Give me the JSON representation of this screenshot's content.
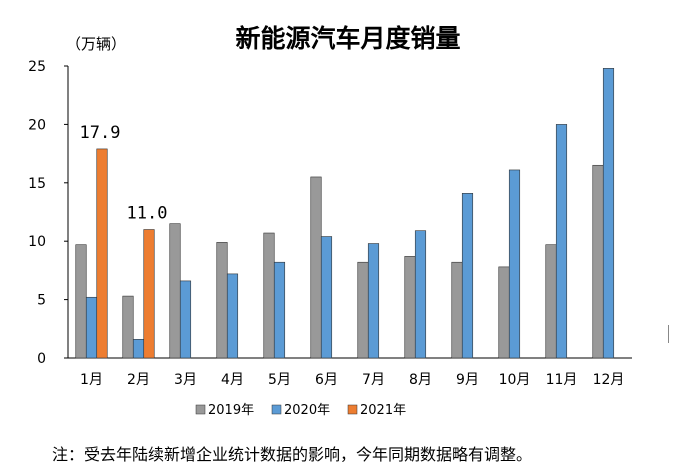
{
  "chart_data": {
    "type": "bar",
    "title": "新能源汽车月度销量",
    "ylabel": "（万辆）",
    "ylim": [
      0,
      25
    ],
    "yticks": [
      0,
      5,
      10,
      15,
      20,
      25
    ],
    "categories": [
      "1月",
      "2月",
      "3月",
      "4月",
      "5月",
      "6月",
      "7月",
      "8月",
      "9月",
      "10月",
      "11月",
      "12月"
    ],
    "series": [
      {
        "name": "2019年",
        "color": "#999999",
        "values": [
          9.7,
          5.3,
          11.5,
          9.9,
          10.7,
          15.5,
          8.2,
          8.7,
          8.2,
          7.8,
          9.7,
          16.5
        ]
      },
      {
        "name": "2020年",
        "color": "#5b9bd5",
        "values": [
          5.2,
          1.6,
          6.6,
          7.2,
          8.2,
          10.4,
          9.8,
          10.9,
          14.1,
          16.1,
          20.0,
          24.8
        ]
      },
      {
        "name": "2021年",
        "color": "#ed7d31",
        "values": [
          17.9,
          11.0,
          null,
          null,
          null,
          null,
          null,
          null,
          null,
          null,
          null,
          null
        ]
      }
    ],
    "data_labels": [
      {
        "series": 2,
        "index": 0,
        "text": "17.9"
      },
      {
        "series": 2,
        "index": 1,
        "text": "11.0"
      }
    ],
    "legend_position": "bottom",
    "grid": false
  },
  "note": "注：受去年陆续新增企业统计数据的影响，今年同期数据略有调整。"
}
